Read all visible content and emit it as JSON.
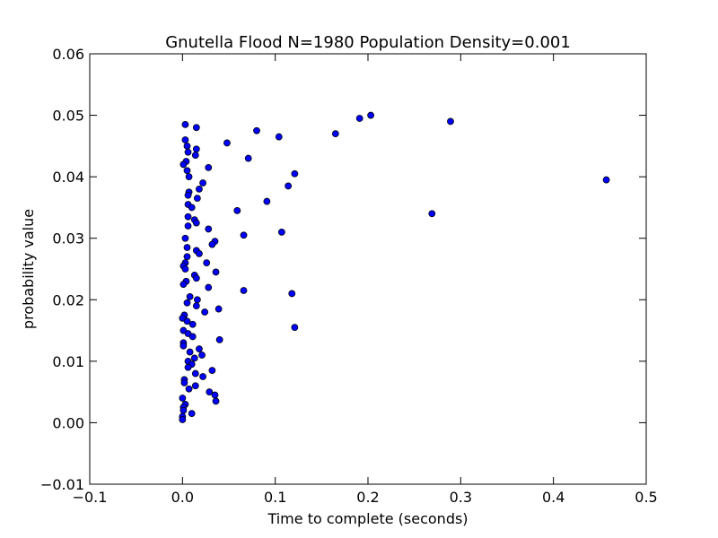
{
  "chart_data": {
    "type": "scatter",
    "title": "Gnutella Flood N=1980 Population Density=0.001",
    "xlabel": "Time to complete (seconds)",
    "ylabel": "probability value",
    "xlim": [
      -0.1,
      0.5
    ],
    "ylim": [
      -0.01,
      0.06
    ],
    "xticks": [
      -0.1,
      0.0,
      0.1,
      0.2,
      0.3,
      0.4,
      0.5
    ],
    "xtick_labels": [
      "−0.1",
      "0.0",
      "0.1",
      "0.2",
      "0.3",
      "0.4",
      "0.5"
    ],
    "yticks": [
      -0.01,
      0.0,
      0.01,
      0.02,
      0.03,
      0.04,
      0.05,
      0.06
    ],
    "ytick_labels": [
      "−0.01",
      "0.00",
      "0.01",
      "0.02",
      "0.03",
      "0.04",
      "0.05",
      "0.06"
    ],
    "grid": false,
    "marker_color": "#0000ff",
    "points": [
      [
        0.003,
        0.0485
      ],
      [
        0.015,
        0.048
      ],
      [
        0.003,
        0.046
      ],
      [
        0.005,
        0.045
      ],
      [
        0.015,
        0.0445
      ],
      [
        0.006,
        0.044
      ],
      [
        0.014,
        0.0435
      ],
      [
        0.004,
        0.0425
      ],
      [
        0.001,
        0.042
      ],
      [
        0.028,
        0.0415
      ],
      [
        0.005,
        0.041
      ],
      [
        0.007,
        0.04
      ],
      [
        0.022,
        0.039
      ],
      [
        0.018,
        0.038
      ],
      [
        0.007,
        0.0375
      ],
      [
        0.006,
        0.037
      ],
      [
        0.016,
        0.0365
      ],
      [
        0.006,
        0.0355
      ],
      [
        0.01,
        0.035
      ],
      [
        0.006,
        0.0335
      ],
      [
        0.013,
        0.033
      ],
      [
        0.015,
        0.0325
      ],
      [
        0.006,
        0.032
      ],
      [
        0.028,
        0.0315
      ],
      [
        0.003,
        0.03
      ],
      [
        0.035,
        0.0295
      ],
      [
        0.032,
        0.029
      ],
      [
        0.005,
        0.0285
      ],
      [
        0.015,
        0.028
      ],
      [
        0.018,
        0.0275
      ],
      [
        0.005,
        0.027
      ],
      [
        0.003,
        0.026
      ],
      [
        0.026,
        0.026
      ],
      [
        0.001,
        0.0255
      ],
      [
        0.003,
        0.025
      ],
      [
        0.036,
        0.0245
      ],
      [
        0.013,
        0.024
      ],
      [
        0.015,
        0.0235
      ],
      [
        0.004,
        0.023
      ],
      [
        0.001,
        0.0225
      ],
      [
        0.028,
        0.022
      ],
      [
        0.008,
        0.0205
      ],
      [
        0.016,
        0.02
      ],
      [
        0.005,
        0.0195
      ],
      [
        0.015,
        0.019
      ],
      [
        0.039,
        0.0185
      ],
      [
        0.024,
        0.018
      ],
      [
        0.002,
        0.0175
      ],
      [
        0.0,
        0.017
      ],
      [
        0.005,
        0.0165
      ],
      [
        0.011,
        0.016
      ],
      [
        0.001,
        0.015
      ],
      [
        0.006,
        0.0145
      ],
      [
        0.011,
        0.014
      ],
      [
        0.04,
        0.0135
      ],
      [
        0.001,
        0.013
      ],
      [
        0.001,
        0.0125
      ],
      [
        0.018,
        0.012
      ],
      [
        0.008,
        0.0115
      ],
      [
        0.021,
        0.011
      ],
      [
        0.013,
        0.0105
      ],
      [
        0.006,
        0.01
      ],
      [
        0.01,
        0.0095
      ],
      [
        0.006,
        0.009
      ],
      [
        0.032,
        0.0085
      ],
      [
        0.014,
        0.008
      ],
      [
        0.022,
        0.0075
      ],
      [
        0.002,
        0.007
      ],
      [
        0.002,
        0.0065
      ],
      [
        0.014,
        0.006
      ],
      [
        0.007,
        0.0055
      ],
      [
        0.029,
        0.005
      ],
      [
        0.035,
        0.0045
      ],
      [
        0.0,
        0.004
      ],
      [
        0.036,
        0.0035
      ],
      [
        0.003,
        0.003
      ],
      [
        0.001,
        0.0025
      ],
      [
        0.001,
        0.002
      ],
      [
        0.01,
        0.0015
      ],
      [
        0.0,
        0.001
      ],
      [
        0.0,
        0.0005
      ],
      [
        0.048,
        0.0455
      ],
      [
        0.08,
        0.0475
      ],
      [
        0.071,
        0.043
      ],
      [
        0.104,
        0.0465
      ],
      [
        0.121,
        0.0405
      ],
      [
        0.114,
        0.0385
      ],
      [
        0.091,
        0.036
      ],
      [
        0.059,
        0.0345
      ],
      [
        0.066,
        0.0305
      ],
      [
        0.107,
        0.031
      ],
      [
        0.066,
        0.0215
      ],
      [
        0.118,
        0.021
      ],
      [
        0.121,
        0.0155
      ],
      [
        0.165,
        0.047
      ],
      [
        0.191,
        0.0495
      ],
      [
        0.203,
        0.05
      ],
      [
        0.289,
        0.049
      ],
      [
        0.269,
        0.034
      ],
      [
        0.457,
        0.0395
      ]
    ]
  }
}
